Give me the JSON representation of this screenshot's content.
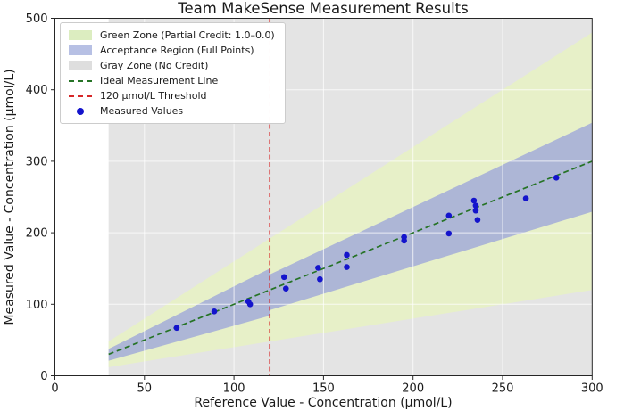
{
  "chart_data": {
    "type": "scatter",
    "title": "Team MakeSense Measurement Results",
    "xlabel": "Reference Value - Concentration (µmol/L)",
    "ylabel": "Measured Value - Concentration (µmol/L)",
    "xlim": [
      0,
      300
    ],
    "ylim": [
      0,
      500
    ],
    "xticks": [
      0,
      50,
      100,
      150,
      200,
      250,
      300
    ],
    "yticks": [
      0,
      100,
      200,
      300,
      400,
      500
    ],
    "grid": true,
    "legend_position": "upper-left",
    "zones": [
      {
        "name": "gray-zone-no-credit",
        "color": "#e4e4e4",
        "poly": [
          [
            30,
            0
          ],
          [
            300,
            0
          ],
          [
            300,
            500
          ],
          [
            30,
            500
          ]
        ]
      },
      {
        "name": "green-zone-partial-credit",
        "color": "#e7f0c8",
        "poly": [
          [
            30,
            12
          ],
          [
            300,
            120
          ],
          [
            300,
            480
          ],
          [
            30,
            48
          ]
        ]
      },
      {
        "name": "acceptance-region-below-threshold",
        "color": "#adb6d6",
        "poly": [
          [
            30,
            21
          ],
          [
            120,
            84
          ],
          [
            120,
            150
          ],
          [
            30,
            37.5
          ]
        ]
      },
      {
        "name": "acceptance-region-above-threshold",
        "color": "#adb6d6",
        "poly": [
          [
            120,
            91.8
          ],
          [
            300,
            229.5
          ],
          [
            300,
            354
          ],
          [
            120,
            141.6
          ]
        ]
      }
    ],
    "ideal_line": {
      "points": [
        [
          30,
          30
        ],
        [
          300,
          300
        ]
      ],
      "color": "#267326",
      "style": "dashed"
    },
    "threshold_line": {
      "x": 120,
      "color": "#d62728",
      "style": "dashed"
    },
    "points": [
      [
        68,
        67
      ],
      [
        89,
        90
      ],
      [
        108,
        104
      ],
      [
        109,
        100
      ],
      [
        128,
        138
      ],
      [
        129,
        122
      ],
      [
        147,
        151
      ],
      [
        148,
        135
      ],
      [
        163,
        169
      ],
      [
        163,
        152
      ],
      [
        195,
        194
      ],
      [
        195,
        189
      ],
      [
        220,
        224
      ],
      [
        220,
        199
      ],
      [
        234,
        245
      ],
      [
        235,
        238
      ],
      [
        235,
        231
      ],
      [
        236,
        218
      ],
      [
        263,
        248
      ],
      [
        280,
        277
      ]
    ],
    "point_color": "#1414cc",
    "legend": [
      {
        "label": "Green Zone (Partial Credit: 1.0–0.0)",
        "type": "patch",
        "color": "#dcedc0"
      },
      {
        "label": "Acceptance Region (Full Points)",
        "type": "patch",
        "color": "#b7c0e4"
      },
      {
        "label": "Gray Zone (No Credit)",
        "type": "patch",
        "color": "#dedede"
      },
      {
        "label": "Ideal Measurement Line",
        "type": "dashed-line",
        "color": "#267326"
      },
      {
        "label": "120 µmol/L Threshold",
        "type": "dashed-line",
        "color": "#d62728"
      },
      {
        "label": "Measured Values",
        "type": "marker",
        "color": "#1414cc"
      }
    ]
  }
}
